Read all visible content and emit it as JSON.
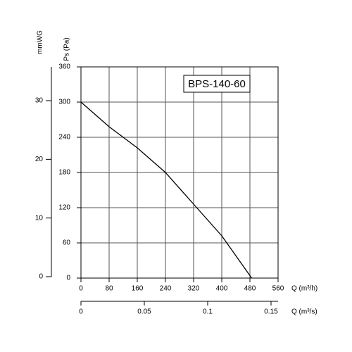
{
  "chart_data": {
    "type": "line",
    "x": [
      0,
      80,
      160,
      240,
      320,
      400,
      485
    ],
    "series": [
      {
        "name": "BPS-140-60",
        "color": "#000000",
        "values": [
          300,
          258,
          222,
          180,
          126,
          72,
          0
        ]
      }
    ],
    "xlabel": "Q (m³/h)",
    "xlim": [
      0,
      560
    ],
    "xticks": [
      0,
      80,
      160,
      240,
      320,
      400,
      480,
      560
    ],
    "x2label": "Q (m³/s)",
    "x2lim": [
      0,
      0.15556
    ],
    "x2ticks": [
      0,
      0.05,
      0.1,
      0.15
    ],
    "ylabel": "Ps (Pa)",
    "ylim": [
      0,
      360
    ],
    "yticks": [
      0,
      60,
      120,
      180,
      240,
      300,
      360
    ],
    "y2label": "mmWG",
    "y2lim": [
      0,
      36
    ],
    "y2ticks": [
      0,
      10,
      20,
      30
    ],
    "grid": true,
    "legend": "top-right"
  }
}
